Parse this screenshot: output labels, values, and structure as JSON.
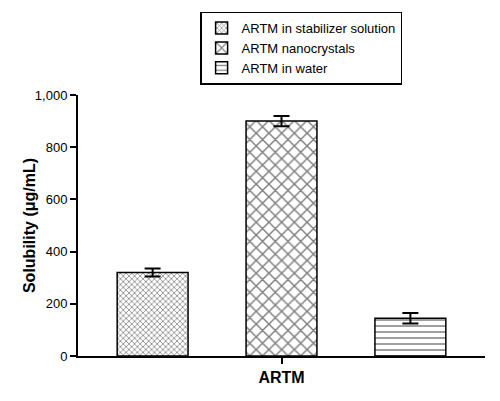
{
  "chart_data": {
    "type": "bar",
    "y_label": "Solubility (μg/mL)",
    "categories": [
      "ARTM"
    ],
    "series": [
      {
        "name": "ARTM in stabilizer solution",
        "color": "#000000",
        "values": [
          320
        ],
        "errors": [
          15
        ]
      },
      {
        "name": "ARTM nanocrystals",
        "color": "#000000",
        "values": [
          900
        ],
        "errors": [
          20
        ]
      },
      {
        "name": "ARTM in water",
        "color": "#000000",
        "values": [
          145
        ],
        "errors": [
          20
        ]
      }
    ],
    "ylim": [
      0,
      1000
    ],
    "yticks": [
      0,
      200,
      400,
      600,
      800,
      {
        "value": 1000,
        "label": "1,000"
      }
    ],
    "grid": false,
    "legend": "top"
  }
}
